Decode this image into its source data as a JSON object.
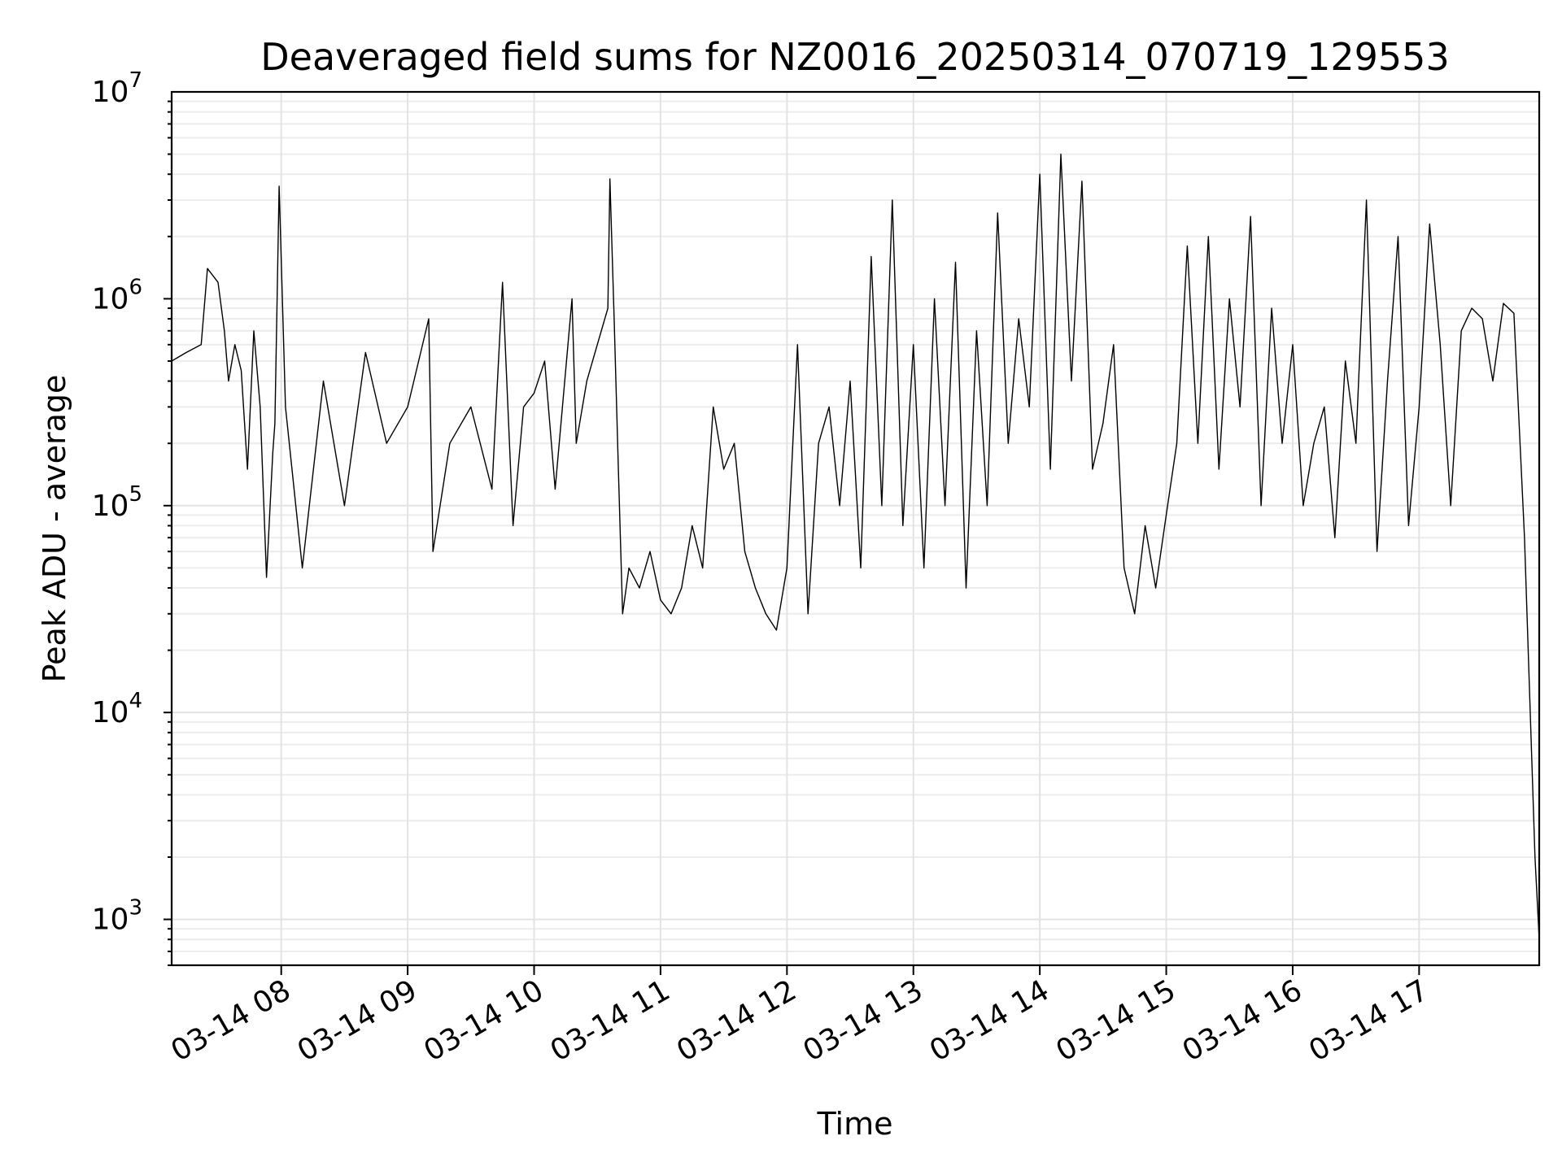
{
  "chart_data": {
    "type": "line",
    "title": "Deaveraged field sums for NZ0016_20250314_070719_129553",
    "xlabel": "Time",
    "ylabel": "Peak ADU - average",
    "y_scale": "log",
    "ylim": [
      600,
      10000000
    ],
    "xlim": [
      "2025-03-14 07:08",
      "2025-03-14 17:57"
    ],
    "grid": true,
    "legend": "none",
    "line_color": "#000000",
    "x_ticks": [
      {
        "value": "2025-03-14 08:00",
        "label": "03-14 08"
      },
      {
        "value": "2025-03-14 09:00",
        "label": "03-14 09"
      },
      {
        "value": "2025-03-14 10:00",
        "label": "03-14 10"
      },
      {
        "value": "2025-03-14 11:00",
        "label": "03-14 11"
      },
      {
        "value": "2025-03-14 12:00",
        "label": "03-14 12"
      },
      {
        "value": "2025-03-14 13:00",
        "label": "03-14 13"
      },
      {
        "value": "2025-03-14 14:00",
        "label": "03-14 14"
      },
      {
        "value": "2025-03-14 15:00",
        "label": "03-14 15"
      },
      {
        "value": "2025-03-14 16:00",
        "label": "03-14 16"
      },
      {
        "value": "2025-03-14 17:00",
        "label": "03-14 17"
      }
    ],
    "y_ticks": [
      {
        "value": 1000,
        "base": "10",
        "exp": "3"
      },
      {
        "value": 10000,
        "base": "10",
        "exp": "4"
      },
      {
        "value": 100000,
        "base": "10",
        "exp": "5"
      },
      {
        "value": 1000000,
        "base": "10",
        "exp": "6"
      },
      {
        "value": 10000000,
        "base": "10",
        "exp": "7"
      }
    ],
    "series": [
      {
        "x": [
          "2025-03-14 07:08",
          "2025-03-14 07:15",
          "2025-03-14 07:22",
          "2025-03-14 07:25",
          "2025-03-14 07:30",
          "2025-03-14 07:33",
          "2025-03-14 07:35",
          "2025-03-14 07:38",
          "2025-03-14 07:41",
          "2025-03-14 07:44",
          "2025-03-14 07:47",
          "2025-03-14 07:50",
          "2025-03-14 07:53",
          "2025-03-14 07:56",
          "2025-03-14 07:57",
          "2025-03-14 07:59",
          "2025-03-14 08:02",
          "2025-03-14 08:10",
          "2025-03-14 08:20",
          "2025-03-14 08:30",
          "2025-03-14 08:40",
          "2025-03-14 08:50",
          "2025-03-14 09:00",
          "2025-03-14 09:10",
          "2025-03-14 09:12",
          "2025-03-14 09:20",
          "2025-03-14 09:30",
          "2025-03-14 09:40",
          "2025-03-14 09:45",
          "2025-03-14 09:50",
          "2025-03-14 09:55",
          "2025-03-14 10:00",
          "2025-03-14 10:05",
          "2025-03-14 10:10",
          "2025-03-14 10:18",
          "2025-03-14 10:20",
          "2025-03-14 10:25",
          "2025-03-14 10:30",
          "2025-03-14 10:35",
          "2025-03-14 10:36",
          "2025-03-14 10:38",
          "2025-03-14 10:40",
          "2025-03-14 10:42",
          "2025-03-14 10:45",
          "2025-03-14 10:50",
          "2025-03-14 10:55",
          "2025-03-14 11:00",
          "2025-03-14 11:05",
          "2025-03-14 11:10",
          "2025-03-14 11:15",
          "2025-03-14 11:20",
          "2025-03-14 11:25",
          "2025-03-14 11:30",
          "2025-03-14 11:35",
          "2025-03-14 11:40",
          "2025-03-14 11:45",
          "2025-03-14 11:50",
          "2025-03-14 11:55",
          "2025-03-14 12:00",
          "2025-03-14 12:05",
          "2025-03-14 12:10",
          "2025-03-14 12:15",
          "2025-03-14 12:20",
          "2025-03-14 12:25",
          "2025-03-14 12:30",
          "2025-03-14 12:35",
          "2025-03-14 12:40",
          "2025-03-14 12:45",
          "2025-03-14 12:50",
          "2025-03-14 12:55",
          "2025-03-14 13:00",
          "2025-03-14 13:05",
          "2025-03-14 13:10",
          "2025-03-14 13:15",
          "2025-03-14 13:20",
          "2025-03-14 13:25",
          "2025-03-14 13:30",
          "2025-03-14 13:35",
          "2025-03-14 13:40",
          "2025-03-14 13:45",
          "2025-03-14 13:50",
          "2025-03-14 13:55",
          "2025-03-14 14:00",
          "2025-03-14 14:05",
          "2025-03-14 14:10",
          "2025-03-14 14:15",
          "2025-03-14 14:20",
          "2025-03-14 14:25",
          "2025-03-14 14:30",
          "2025-03-14 14:35",
          "2025-03-14 14:40",
          "2025-03-14 14:45",
          "2025-03-14 14:50",
          "2025-03-14 14:55",
          "2025-03-14 15:00",
          "2025-03-14 15:05",
          "2025-03-14 15:10",
          "2025-03-14 15:15",
          "2025-03-14 15:20",
          "2025-03-14 15:25",
          "2025-03-14 15:30",
          "2025-03-14 15:35",
          "2025-03-14 15:40",
          "2025-03-14 15:45",
          "2025-03-14 15:50",
          "2025-03-14 15:55",
          "2025-03-14 16:00",
          "2025-03-14 16:05",
          "2025-03-14 16:10",
          "2025-03-14 16:15",
          "2025-03-14 16:20",
          "2025-03-14 16:25",
          "2025-03-14 16:30",
          "2025-03-14 16:35",
          "2025-03-14 16:40",
          "2025-03-14 16:45",
          "2025-03-14 16:50",
          "2025-03-14 16:55",
          "2025-03-14 17:00",
          "2025-03-14 17:05",
          "2025-03-14 17:10",
          "2025-03-14 17:15",
          "2025-03-14 17:20",
          "2025-03-14 17:25",
          "2025-03-14 17:30",
          "2025-03-14 17:35",
          "2025-03-14 17:40",
          "2025-03-14 17:45",
          "2025-03-14 17:50",
          "2025-03-14 17:55",
          "2025-03-14 17:57"
        ],
        "y": [
          500000,
          550000,
          600000,
          1400000,
          1200000,
          700000,
          400000,
          600000,
          450000,
          150000,
          700000,
          300000,
          45000,
          180000,
          250000,
          3500000,
          300000,
          50000,
          400000,
          100000,
          550000,
          200000,
          300000,
          800000,
          60000,
          200000,
          300000,
          120000,
          1200000,
          80000,
          300000,
          350000,
          500000,
          120000,
          1000000,
          200000,
          400000,
          600000,
          900000,
          3800000,
          800000,
          150000,
          30000,
          50000,
          40000,
          60000,
          35000,
          30000,
          40000,
          80000,
          50000,
          300000,
          150000,
          200000,
          60000,
          40000,
          30000,
          25000,
          50000,
          600000,
          30000,
          200000,
          300000,
          100000,
          400000,
          50000,
          1600000,
          100000,
          3000000,
          80000,
          600000,
          50000,
          1000000,
          100000,
          1500000,
          40000,
          700000,
          100000,
          2600000,
          200000,
          800000,
          300000,
          4000000,
          150000,
          5000000,
          400000,
          3700000,
          150000,
          250000,
          600000,
          50000,
          30000,
          80000,
          40000,
          90000,
          200000,
          1800000,
          200000,
          2000000,
          150000,
          1000000,
          300000,
          2500000,
          100000,
          900000,
          200000,
          600000,
          100000,
          200000,
          300000,
          70000,
          500000,
          200000,
          3000000,
          60000,
          400000,
          2000000,
          80000,
          300000,
          2300000,
          600000,
          100000,
          700000,
          900000,
          800000,
          400000,
          950000,
          850000,
          70000,
          2000,
          800
        ]
      }
    ]
  }
}
